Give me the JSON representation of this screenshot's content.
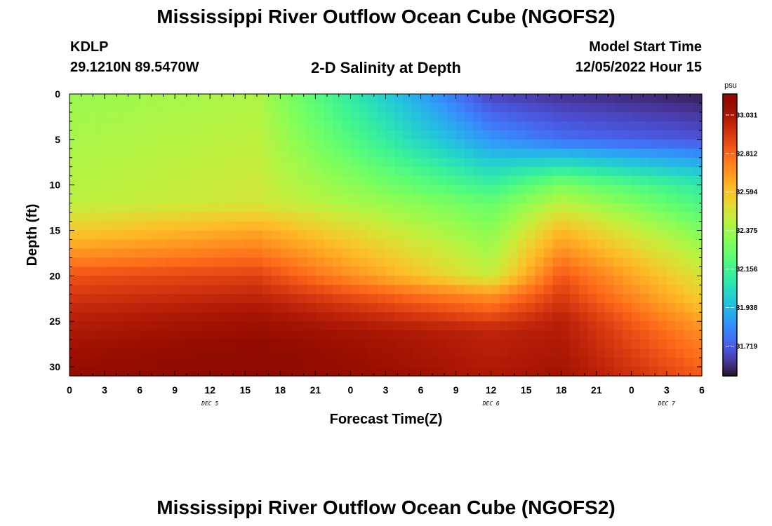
{
  "page": {
    "title": "Mississippi River Outflow Ocean Cube (NGOFS2)",
    "title_repeat": "Mississippi River Outflow Ocean Cube (NGOFS2)",
    "station_id": "KDLP",
    "station_coords": "29.1210N  89.5470W",
    "panel_title": "2-D Salinity at Depth",
    "model_start_label": "Model Start Time",
    "model_start_value": "12/05/2022 Hour 15"
  },
  "chart_data": {
    "type": "heatmap",
    "title": "2-D Salinity at Depth",
    "xlabel": "Forecast Time(Z)",
    "ylabel": "Depth (ft)",
    "x_range_hours": [
      0,
      54
    ],
    "y_range": [
      0,
      31
    ],
    "y_inverted": true,
    "x_ticks": [
      "0",
      "3",
      "6",
      "9",
      "12",
      "15",
      "18",
      "21",
      "0",
      "3",
      "6",
      "9",
      "12",
      "15",
      "18",
      "21",
      "0",
      "3",
      "6"
    ],
    "y_ticks": [
      0,
      5,
      10,
      15,
      20,
      25,
      30
    ],
    "date_labels": [
      {
        "label": "DEC 5",
        "hour": 12
      },
      {
        "label": "DEC 6",
        "hour": 36
      },
      {
        "label": "DEC 7",
        "hour": 51
      }
    ],
    "colorbar": {
      "unit": "psu",
      "min": 31.55,
      "max": 33.15,
      "ticks": [
        "33.031",
        "32.812",
        "32.594",
        "32.375",
        "32.156",
        "31.938",
        "31.719"
      ],
      "colormap": "turbo"
    },
    "grid": false,
    "field_description_profiles": [
      {
        "hour": 0,
        "depth_ft": [
          0,
          12,
          16,
          20,
          24,
          28,
          31
        ],
        "psu": [
          32.36,
          32.43,
          32.62,
          32.86,
          32.98,
          33.06,
          33.1
        ]
      },
      {
        "hour": 16,
        "depth_ft": [
          0,
          12,
          15,
          20,
          24,
          28,
          31
        ],
        "psu": [
          32.4,
          32.48,
          32.66,
          32.9,
          33.04,
          33.12,
          33.14
        ]
      },
      {
        "hour": 36,
        "depth_ft": [
          0,
          5,
          12,
          20,
          22,
          26,
          31
        ],
        "psu": [
          31.66,
          31.85,
          32.25,
          32.45,
          32.7,
          32.98,
          33.02
        ]
      },
      {
        "hour": 42,
        "depth_ft": [
          0,
          5,
          10,
          15,
          20,
          25,
          31
        ],
        "psu": [
          31.62,
          31.76,
          32.3,
          32.62,
          32.85,
          33.0,
          33.05
        ]
      },
      {
        "hour": 54,
        "depth_ft": [
          0,
          5,
          10,
          18,
          22,
          26,
          31
        ],
        "psu": [
          31.58,
          31.7,
          32.1,
          32.42,
          32.55,
          32.72,
          32.84
        ]
      }
    ]
  }
}
